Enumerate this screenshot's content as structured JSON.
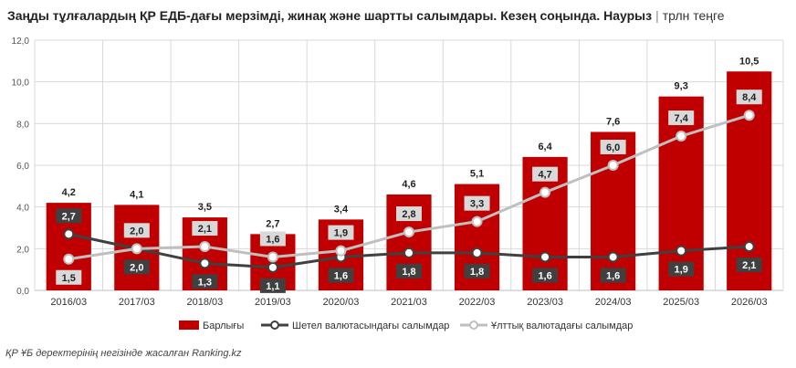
{
  "title": {
    "main": "Заңды тұлғалардың ҚР ЕДБ-дағы мерзімді, жинақ және шартты салымдары. Кезең соңында. Наурыз",
    "unit": "трлн теңге"
  },
  "source": "ҚР ҰБ деректерінің негізінде жасалған Ranking.kz",
  "colors": {
    "bar": "#c00000",
    "foreign_line": "#404040",
    "national_line": "#bfbfbf",
    "grid": "#d9d9d9"
  },
  "chart_data": {
    "type": "bar",
    "categories": [
      "2016/03",
      "2017/03",
      "2018/03",
      "2019/03",
      "2020/03",
      "2021/03",
      "2022/03",
      "2023/03",
      "2024/03",
      "2025/03",
      "2026/03"
    ],
    "ylim": [
      0,
      12
    ],
    "yticks": [
      "0,0",
      "2,0",
      "4,0",
      "6,0",
      "8,0",
      "10,0",
      "12,0"
    ],
    "grid": true,
    "legend_position": "bottom",
    "series": [
      {
        "name": "Барлығы",
        "kind": "bar",
        "values": [
          4.2,
          4.1,
          3.5,
          2.7,
          3.4,
          4.6,
          5.1,
          6.4,
          7.6,
          9.3,
          10.5
        ],
        "labels": [
          "4,2",
          "4,1",
          "3,5",
          "2,7",
          "3,4",
          "4,6",
          "5,1",
          "6,4",
          "7,6",
          "9,3",
          "10,5"
        ]
      },
      {
        "name": "Шетел валютасындағы салымдар",
        "kind": "line",
        "values": [
          2.7,
          2.0,
          1.3,
          1.1,
          1.6,
          1.8,
          1.8,
          1.6,
          1.6,
          1.9,
          2.1
        ],
        "labels": [
          "2,7",
          "2,0",
          "1,3",
          "1,1",
          "1,6",
          "1,8",
          "1,8",
          "1,6",
          "1,6",
          "1,9",
          "2,1"
        ]
      },
      {
        "name": "Ұлттық валютадағы салымдар",
        "kind": "line",
        "values": [
          1.5,
          2.0,
          2.1,
          1.6,
          1.9,
          2.8,
          3.3,
          4.7,
          6.0,
          7.4,
          8.4
        ],
        "labels": [
          "1,5",
          "2,0",
          "2,1",
          "1,6",
          "1,9",
          "2,8",
          "3,3",
          "4,7",
          "6,0",
          "7,4",
          "8,4"
        ]
      }
    ]
  }
}
